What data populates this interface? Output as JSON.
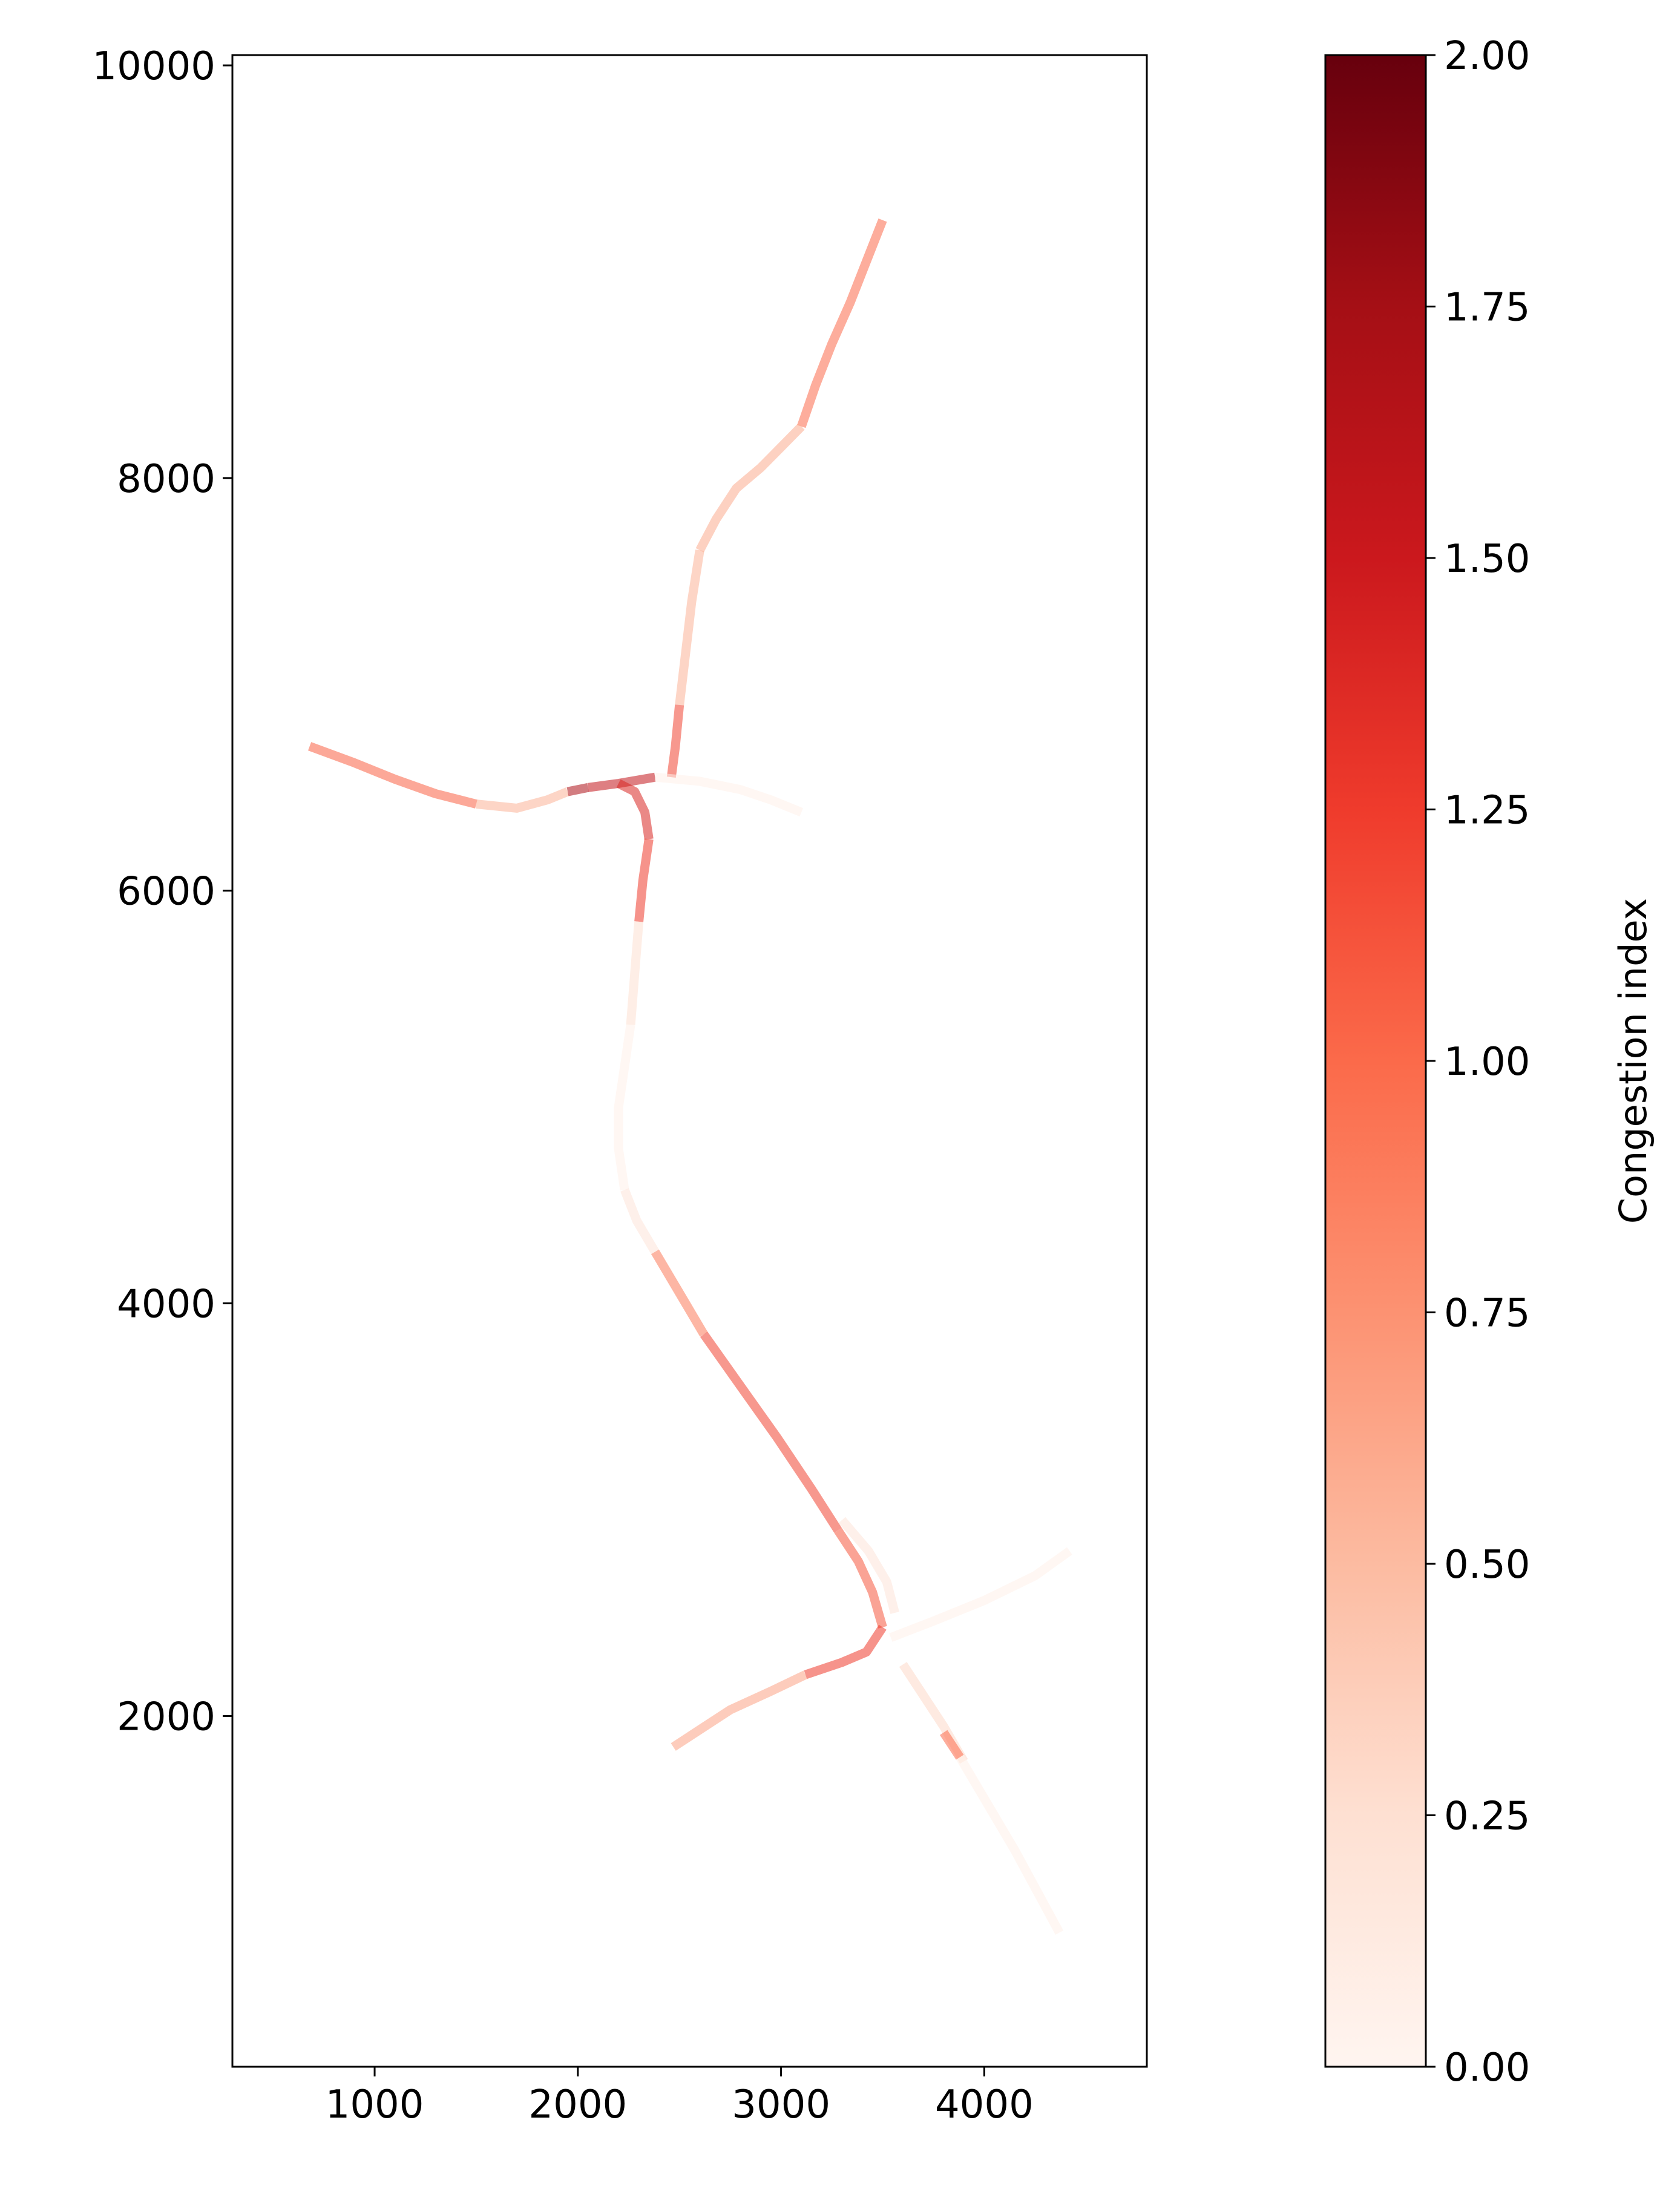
{
  "chart_data": {
    "type": "line",
    "title": "",
    "xlabel": "",
    "ylabel": "",
    "xlim": [
      300,
      4800
    ],
    "ylim": [
      300,
      10050
    ],
    "x_ticks": [
      1000,
      2000,
      3000,
      4000
    ],
    "y_ticks": [
      2000,
      4000,
      6000,
      8000,
      10000
    ],
    "x_tick_labels": [
      "1000",
      "2000",
      "3000",
      "4000"
    ],
    "y_tick_labels": [
      "2000",
      "4000",
      "6000",
      "8000",
      "10000"
    ],
    "grid": false,
    "legend": "none",
    "colorbar": {
      "label": "Congestion index",
      "min": 0.0,
      "max": 2.0,
      "ticks": [
        0.0,
        0.25,
        0.5,
        0.75,
        1.0,
        1.25,
        1.5,
        1.75,
        2.0
      ],
      "tick_labels": [
        "0.00",
        "0.25",
        "0.50",
        "0.75",
        "1.00",
        "1.25",
        "1.50",
        "1.75",
        "2.00"
      ],
      "colormap": "Reds",
      "colors": [
        "#fff5f0",
        "#fee0d2",
        "#fcbba1",
        "#fc9272",
        "#fb6a4a",
        "#ef3b2c",
        "#cb181d",
        "#a50f15",
        "#67000d"
      ]
    },
    "segments": [
      {
        "x": [
          3500,
          3420,
          3340,
          3250,
          3170,
          3100
        ],
        "y": [
          9250,
          9050,
          8850,
          8650,
          8450,
          8250
        ],
        "value": 1.0
      },
      {
        "x": [
          3100,
          3000,
          2900,
          2780,
          2680,
          2600
        ],
        "y": [
          8250,
          8150,
          8050,
          7950,
          7800,
          7650
        ],
        "value": 0.6
      },
      {
        "x": [
          2600,
          2560,
          2530,
          2500
        ],
        "y": [
          7650,
          7400,
          7150,
          6900
        ],
        "value": 0.55
      },
      {
        "x": [
          2500,
          2480,
          2460
        ],
        "y": [
          6900,
          6700,
          6550
        ],
        "value": 1.2
      },
      {
        "x": [
          680,
          900,
          1100,
          1300,
          1500
        ],
        "y": [
          6700,
          6620,
          6540,
          6470,
          6420
        ],
        "value": 1.05
      },
      {
        "x": [
          1500,
          1700,
          1850,
          1950
        ],
        "y": [
          6420,
          6400,
          6440,
          6480
        ],
        "value": 0.55
      },
      {
        "x": [
          1950,
          2050
        ],
        "y": [
          6480,
          6500
        ],
        "value": 1.7
      },
      {
        "x": [
          2050,
          2200,
          2380
        ],
        "y": [
          6500,
          6520,
          6550
        ],
        "value": 1.55
      },
      {
        "x": [
          2380,
          2600,
          2800,
          2950,
          3100
        ],
        "y": [
          6550,
          6530,
          6490,
          6440,
          6380
        ],
        "value": 0.05
      },
      {
        "x": [
          2200,
          2280,
          2330,
          2350
        ],
        "y": [
          6520,
          6480,
          6380,
          6250
        ],
        "value": 1.4
      },
      {
        "x": [
          2350,
          2320,
          2300
        ],
        "y": [
          6250,
          6050,
          5850
        ],
        "value": 1.25
      },
      {
        "x": [
          2300,
          2280,
          2260
        ],
        "y": [
          5850,
          5600,
          5350
        ],
        "value": 0.25
      },
      {
        "x": [
          2260,
          2230,
          2200,
          2200,
          2230
        ],
        "y": [
          5350,
          5150,
          4950,
          4750,
          4550
        ],
        "value": 0.05
      },
      {
        "x": [
          2230,
          2290,
          2380
        ],
        "y": [
          4550,
          4400,
          4250
        ],
        "value": 0.2
      },
      {
        "x": [
          2380,
          2500,
          2620
        ],
        "y": [
          4250,
          4050,
          3850
        ],
        "value": 0.9
      },
      {
        "x": [
          2620,
          2800,
          2980,
          3150,
          3280
        ],
        "y": [
          3850,
          3600,
          3350,
          3100,
          2900
        ],
        "value": 1.2
      },
      {
        "x": [
          3280,
          3380,
          3450,
          3500
        ],
        "y": [
          2900,
          2750,
          2600,
          2430
        ],
        "value": 1.1
      },
      {
        "x": [
          3300,
          3430,
          3520,
          3560
        ],
        "y": [
          2950,
          2800,
          2650,
          2500
        ],
        "value": 0.2
      },
      {
        "x": [
          3500,
          3420,
          3300,
          3120
        ],
        "y": [
          2430,
          2310,
          2260,
          2200
        ],
        "value": 1.25
      },
      {
        "x": [
          3120,
          2950,
          2750,
          2470
        ],
        "y": [
          2200,
          2120,
          2030,
          1850
        ],
        "value": 0.65
      },
      {
        "x": [
          3540,
          3750,
          4000,
          4250,
          4420
        ],
        "y": [
          2380,
          2460,
          2560,
          2680,
          2800
        ],
        "value": 0.05
      },
      {
        "x": [
          3600,
          3700,
          3800,
          3900
        ],
        "y": [
          2250,
          2100,
          1950,
          1780
        ],
        "value": 0.3
      },
      {
        "x": [
          3800,
          3880
        ],
        "y": [
          1920,
          1800
        ],
        "value": 1.0
      },
      {
        "x": [
          3880,
          4000,
          4150,
          4370
        ],
        "y": [
          1800,
          1600,
          1350,
          950
        ],
        "value": 0.05
      }
    ]
  }
}
